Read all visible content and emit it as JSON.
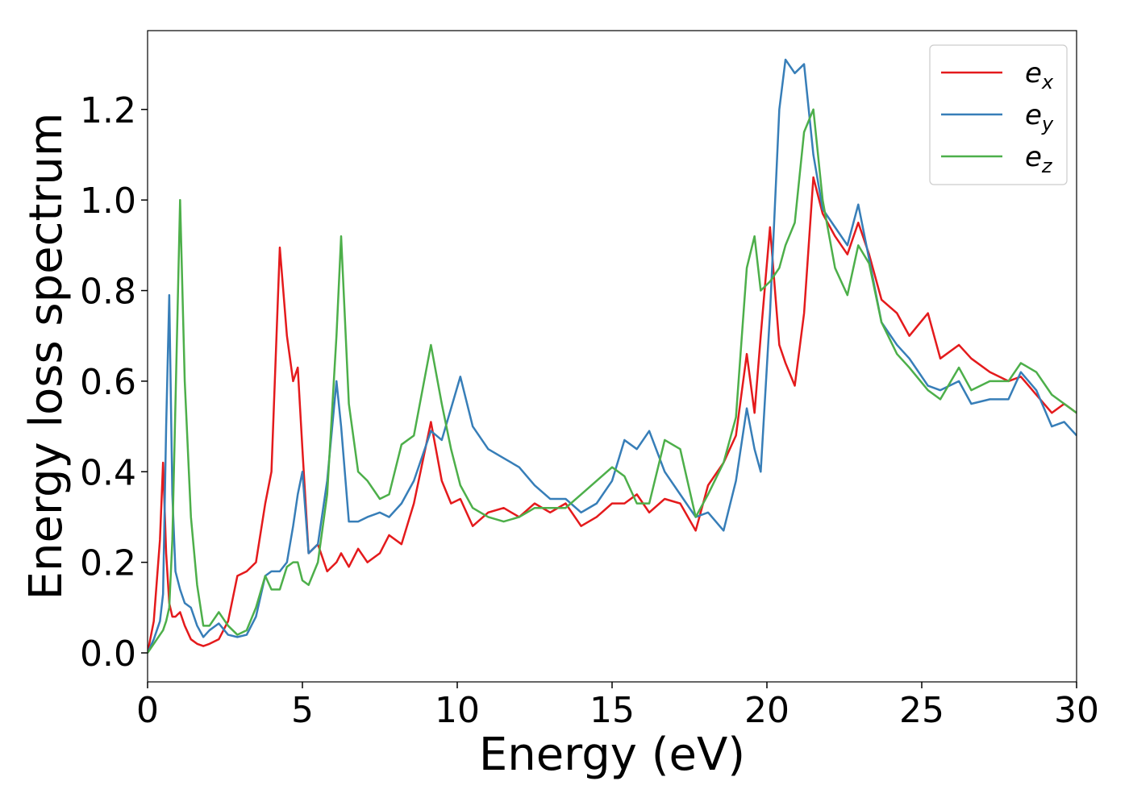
{
  "chart_data": {
    "type": "line",
    "xlabel": "Energy (eV)",
    "ylabel": "Energy loss spectrum",
    "xlim": [
      0,
      30
    ],
    "ylim": [
      -0.064,
      1.374
    ],
    "xticks": [
      0,
      5,
      10,
      15,
      20,
      25,
      30
    ],
    "yticks": [
      {
        "value": 0,
        "label": "0.0"
      },
      {
        "value": 0.2,
        "label": "0.2"
      },
      {
        "value": 0.4,
        "label": "0.4"
      },
      {
        "value": 0.6,
        "label": "0.6"
      },
      {
        "value": 0.8,
        "label": "0.8"
      },
      {
        "value": 1.0,
        "label": "1.0"
      },
      {
        "value": 1.2,
        "label": "1.2"
      }
    ],
    "legend": "upper right",
    "grid": false,
    "x": [
      0,
      0.2,
      0.4,
      0.5,
      0.6,
      0.7,
      0.8,
      0.9,
      1.05,
      1.2,
      1.4,
      1.6,
      1.8,
      2.0,
      2.3,
      2.6,
      2.9,
      3.2,
      3.5,
      3.8,
      4.0,
      4.27,
      4.5,
      4.7,
      4.85,
      5.0,
      5.2,
      5.5,
      5.8,
      6.1,
      6.25,
      6.5,
      6.8,
      7.1,
      7.5,
      7.8,
      8.2,
      8.6,
      9.15,
      9.5,
      9.8,
      10.1,
      10.5,
      11,
      11.5,
      12,
      12.5,
      13,
      13.5,
      14,
      14.5,
      15,
      15.4,
      15.8,
      16.2,
      16.7,
      17.2,
      17.7,
      18.1,
      18.6,
      19.0,
      19.35,
      19.6,
      19.8,
      20.1,
      20.4,
      20.6,
      20.9,
      21.2,
      21.5,
      21.8,
      22.2,
      22.6,
      22.95,
      23.3,
      23.7,
      24.2,
      24.6,
      25.2,
      25.6,
      26.2,
      26.6,
      27.2,
      27.8,
      28.2,
      28.7,
      29.2,
      29.6,
      30
    ],
    "series": [
      {
        "name": "e_x",
        "color": "#e41a1c",
        "values": [
          0.0,
          0.07,
          0.25,
          0.42,
          0.22,
          0.11,
          0.08,
          0.08,
          0.09,
          0.06,
          0.03,
          0.02,
          0.015,
          0.02,
          0.03,
          0.07,
          0.17,
          0.18,
          0.2,
          0.33,
          0.4,
          0.895,
          0.7,
          0.6,
          0.63,
          0.45,
          0.22,
          0.24,
          0.18,
          0.2,
          0.22,
          0.19,
          0.23,
          0.2,
          0.22,
          0.26,
          0.24,
          0.33,
          0.51,
          0.38,
          0.33,
          0.34,
          0.28,
          0.31,
          0.32,
          0.3,
          0.33,
          0.31,
          0.33,
          0.28,
          0.3,
          0.33,
          0.33,
          0.35,
          0.31,
          0.34,
          0.33,
          0.27,
          0.37,
          0.42,
          0.48,
          0.66,
          0.53,
          0.7,
          0.94,
          0.68,
          0.64,
          0.59,
          0.75,
          1.05,
          0.97,
          0.92,
          0.88,
          0.95,
          0.88,
          0.78,
          0.75,
          0.7,
          0.75,
          0.65,
          0.68,
          0.65,
          0.62,
          0.6,
          0.61,
          0.57,
          0.53,
          0.55,
          0.53
        ]
      },
      {
        "name": "e_y",
        "color": "#377eb8",
        "values": [
          0.0,
          0.03,
          0.07,
          0.13,
          0.5,
          0.79,
          0.35,
          0.18,
          0.14,
          0.11,
          0.1,
          0.06,
          0.035,
          0.05,
          0.065,
          0.04,
          0.035,
          0.04,
          0.08,
          0.17,
          0.18,
          0.18,
          0.2,
          0.28,
          0.35,
          0.4,
          0.22,
          0.24,
          0.38,
          0.6,
          0.5,
          0.29,
          0.29,
          0.3,
          0.31,
          0.3,
          0.33,
          0.38,
          0.49,
          0.47,
          0.54,
          0.61,
          0.5,
          0.45,
          0.43,
          0.41,
          0.37,
          0.34,
          0.34,
          0.31,
          0.33,
          0.38,
          0.47,
          0.45,
          0.49,
          0.4,
          0.35,
          0.3,
          0.31,
          0.27,
          0.38,
          0.54,
          0.45,
          0.4,
          0.75,
          1.2,
          1.31,
          1.28,
          1.3,
          1.1,
          0.98,
          0.94,
          0.9,
          0.99,
          0.87,
          0.73,
          0.68,
          0.65,
          0.59,
          0.58,
          0.6,
          0.55,
          0.56,
          0.56,
          0.62,
          0.58,
          0.5,
          0.51,
          0.48
        ]
      },
      {
        "name": "e_z",
        "color": "#4daf4a",
        "values": [
          0.0,
          0.02,
          0.04,
          0.05,
          0.07,
          0.1,
          0.25,
          0.55,
          1.0,
          0.6,
          0.3,
          0.15,
          0.06,
          0.06,
          0.09,
          0.06,
          0.04,
          0.05,
          0.1,
          0.17,
          0.14,
          0.14,
          0.19,
          0.2,
          0.2,
          0.16,
          0.15,
          0.2,
          0.35,
          0.7,
          0.92,
          0.55,
          0.4,
          0.38,
          0.34,
          0.35,
          0.46,
          0.48,
          0.68,
          0.55,
          0.45,
          0.37,
          0.32,
          0.3,
          0.29,
          0.3,
          0.32,
          0.32,
          0.32,
          0.35,
          0.38,
          0.41,
          0.39,
          0.33,
          0.33,
          0.47,
          0.45,
          0.3,
          0.35,
          0.42,
          0.52,
          0.85,
          0.92,
          0.8,
          0.82,
          0.85,
          0.9,
          0.95,
          1.15,
          1.2,
          1.0,
          0.85,
          0.79,
          0.9,
          0.86,
          0.73,
          0.66,
          0.63,
          0.58,
          0.56,
          0.63,
          0.58,
          0.6,
          0.6,
          0.64,
          0.62,
          0.57,
          0.55,
          0.53
        ]
      }
    ]
  }
}
